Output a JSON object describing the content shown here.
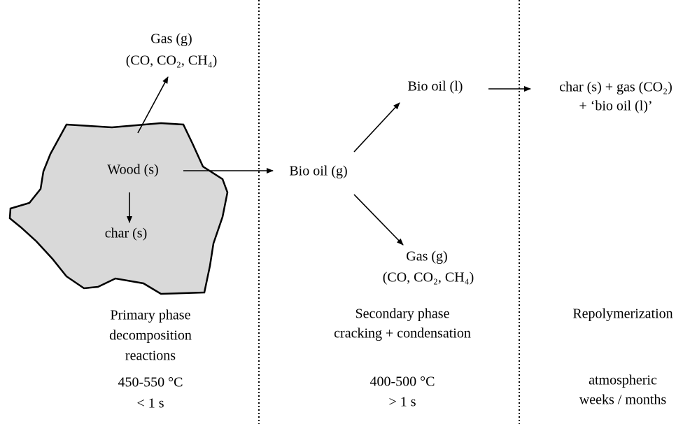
{
  "nodes": {
    "primary_gas": [
      "Gas (g)",
      "(CO, CO₂, CH₄)"
    ],
    "wood": "Wood (s)",
    "char": "char (s)",
    "bio_oil_gas": "Bio oil (g)",
    "bio_oil_liquid": "Bio oil (l)",
    "secondary_gas": [
      "Gas (g)",
      "(CO, CO₂, CH₄)"
    ],
    "repolymerization_products": [
      "char (s) + gas (CO₂)",
      "+ ‘bio oil (l)’"
    ]
  },
  "phases": [
    {
      "name": [
        "Primary phase",
        "decomposition",
        "reactions"
      ],
      "conditions": [
        "450-550 °C",
        "< 1 s"
      ]
    },
    {
      "name": [
        "Secondary phase",
        "cracking + condensation"
      ],
      "conditions": [
        "400-500 °C",
        "> 1 s"
      ]
    },
    {
      "name": [
        "Repolymerization"
      ],
      "conditions": [
        "atmospheric",
        "weeks / months"
      ]
    }
  ]
}
